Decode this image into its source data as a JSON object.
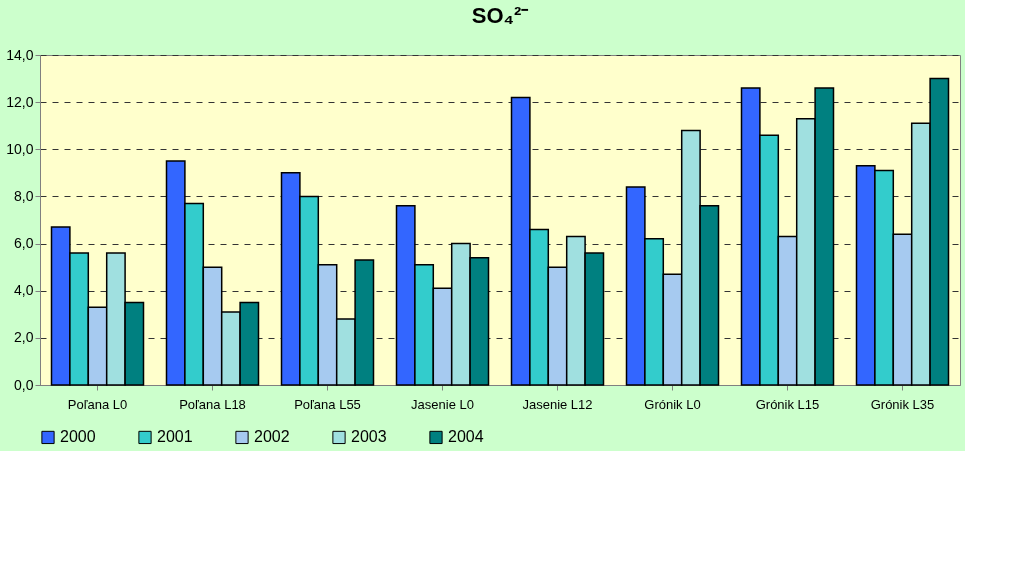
{
  "chart_data": {
    "type": "bar",
    "title": "SO₄²⁻",
    "categories": [
      "Poľana L0",
      "Poľana L18",
      "Poľana L55",
      "Jasenie L0",
      "Jasenie L12",
      "Grónik L0",
      "Grónik L15",
      "Grónik L35"
    ],
    "series": [
      {
        "name": "2000",
        "color": "#3366ff",
        "values": [
          6.7,
          9.5,
          9.0,
          7.6,
          12.2,
          8.4,
          12.6,
          9.3
        ]
      },
      {
        "name": "2001",
        "color": "#33cccc",
        "values": [
          5.6,
          7.7,
          8.0,
          5.1,
          6.6,
          6.2,
          10.6,
          9.1
        ]
      },
      {
        "name": "2002",
        "color": "#a6caf0",
        "values": [
          3.3,
          5.0,
          5.1,
          4.1,
          5.0,
          4.7,
          6.3,
          6.4
        ]
      },
      {
        "name": "2003",
        "color": "#a0e0e0",
        "values": [
          5.6,
          3.1,
          2.8,
          6.0,
          6.3,
          10.8,
          11.3,
          11.1
        ]
      },
      {
        "name": "2004",
        "color": "#008080",
        "values": [
          3.5,
          3.5,
          5.3,
          5.4,
          5.6,
          7.6,
          12.6,
          13.0
        ]
      }
    ],
    "ylim": [
      0,
      14
    ],
    "yticks": [
      {
        "value": 0,
        "label": "0,0"
      },
      {
        "value": 2,
        "label": "2,0"
      },
      {
        "value": 4,
        "label": "4,0"
      },
      {
        "value": 6,
        "label": "6,0"
      },
      {
        "value": 8,
        "label": "8,0"
      },
      {
        "value": 10,
        "label": "10,0"
      },
      {
        "value": 12,
        "label": "12,0"
      },
      {
        "value": 14,
        "label": "14,0"
      }
    ],
    "grid": "y",
    "legend": "bottom"
  }
}
